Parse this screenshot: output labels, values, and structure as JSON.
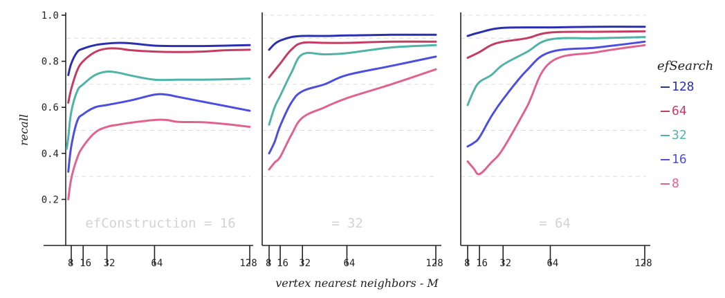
{
  "chart_data": {
    "type": "line",
    "ylabel": "recall",
    "xlabel": "vertex nearest neighbors - M",
    "ylim": [
      0.0,
      1.0
    ],
    "yticks": [
      "0.2",
      "0.4",
      "0.6",
      "0.8",
      "1.0"
    ],
    "xlim": [
      0,
      130
    ],
    "xticks": [
      "8",
      "16",
      "32",
      "64",
      "128"
    ],
    "grid": true,
    "legend": {
      "title": "efSearch",
      "position": "right",
      "entries": [
        "128",
        "64",
        "32",
        "16",
        "8"
      ]
    },
    "colors": {
      "128": "#2a2fb0",
      "64": "#c43b63",
      "32": "#4fb3a8",
      "16": "#4c4ee0",
      "8": "#e0628e"
    },
    "panels": [
      {
        "label": "efConstruction = 16",
        "series": [
          {
            "name": "128",
            "points": [
              [
                6,
                0.74
              ],
              [
                8,
                0.79
              ],
              [
                12,
                0.84
              ],
              [
                16,
                0.855
              ],
              [
                24,
                0.87
              ],
              [
                32,
                0.877
              ],
              [
                40,
                0.88
              ],
              [
                48,
                0.878
              ],
              [
                64,
                0.868
              ],
              [
                80,
                0.866
              ],
              [
                96,
                0.866
              ],
              [
                112,
                0.868
              ],
              [
                128,
                0.87
              ]
            ]
          },
          {
            "name": "64",
            "points": [
              [
                6,
                0.62
              ],
              [
                8,
                0.68
              ],
              [
                12,
                0.76
              ],
              [
                16,
                0.8
              ],
              [
                24,
                0.84
              ],
              [
                32,
                0.855
              ],
              [
                40,
                0.855
              ],
              [
                48,
                0.848
              ],
              [
                64,
                0.842
              ],
              [
                80,
                0.84
              ],
              [
                96,
                0.842
              ],
              [
                112,
                0.848
              ],
              [
                128,
                0.85
              ]
            ]
          },
          {
            "name": "32",
            "points": [
              [
                5,
                0.42
              ],
              [
                6,
                0.47
              ],
              [
                8,
                0.58
              ],
              [
                12,
                0.67
              ],
              [
                16,
                0.7
              ],
              [
                24,
                0.74
              ],
              [
                32,
                0.755
              ],
              [
                40,
                0.75
              ],
              [
                48,
                0.738
              ],
              [
                64,
                0.72
              ],
              [
                80,
                0.72
              ],
              [
                96,
                0.72
              ],
              [
                112,
                0.722
              ],
              [
                128,
                0.725
              ]
            ]
          },
          {
            "name": "16",
            "points": [
              [
                6,
                0.32
              ],
              [
                8,
                0.43
              ],
              [
                12,
                0.54
              ],
              [
                16,
                0.57
              ],
              [
                24,
                0.6
              ],
              [
                32,
                0.61
              ],
              [
                48,
                0.63
              ],
              [
                64,
                0.655
              ],
              [
                72,
                0.655
              ],
              [
                80,
                0.645
              ],
              [
                96,
                0.625
              ],
              [
                112,
                0.605
              ],
              [
                128,
                0.585
              ]
            ]
          },
          {
            "name": "8",
            "points": [
              [
                6,
                0.2
              ],
              [
                8,
                0.29
              ],
              [
                12,
                0.38
              ],
              [
                16,
                0.43
              ],
              [
                24,
                0.49
              ],
              [
                32,
                0.515
              ],
              [
                40,
                0.525
              ],
              [
                48,
                0.533
              ],
              [
                64,
                0.545
              ],
              [
                72,
                0.545
              ],
              [
                80,
                0.537
              ],
              [
                96,
                0.535
              ],
              [
                112,
                0.527
              ],
              [
                128,
                0.515
              ]
            ]
          }
        ]
      },
      {
        "label": "= 32",
        "series": [
          {
            "name": "128",
            "points": [
              [
                8,
                0.85
              ],
              [
                12,
                0.875
              ],
              [
                16,
                0.89
              ],
              [
                24,
                0.905
              ],
              [
                32,
                0.91
              ],
              [
                48,
                0.91
              ],
              [
                64,
                0.912
              ],
              [
                96,
                0.915
              ],
              [
                128,
                0.915
              ]
            ]
          },
          {
            "name": "64",
            "points": [
              [
                8,
                0.73
              ],
              [
                12,
                0.76
              ],
              [
                16,
                0.79
              ],
              [
                24,
                0.85
              ],
              [
                32,
                0.88
              ],
              [
                48,
                0.88
              ],
              [
                64,
                0.88
              ],
              [
                96,
                0.885
              ],
              [
                128,
                0.885
              ]
            ]
          },
          {
            "name": "32",
            "points": [
              [
                8,
                0.525
              ],
              [
                12,
                0.6
              ],
              [
                16,
                0.65
              ],
              [
                24,
                0.75
              ],
              [
                32,
                0.83
              ],
              [
                48,
                0.83
              ],
              [
                64,
                0.835
              ],
              [
                96,
                0.86
              ],
              [
                128,
                0.87
              ]
            ]
          },
          {
            "name": "16",
            "points": [
              [
                8,
                0.4
              ],
              [
                12,
                0.45
              ],
              [
                16,
                0.52
              ],
              [
                24,
                0.62
              ],
              [
                32,
                0.67
              ],
              [
                48,
                0.7
              ],
              [
                64,
                0.74
              ],
              [
                96,
                0.78
              ],
              [
                128,
                0.82
              ]
            ]
          },
          {
            "name": "8",
            "points": [
              [
                8,
                0.33
              ],
              [
                12,
                0.36
              ],
              [
                16,
                0.385
              ],
              [
                24,
                0.48
              ],
              [
                32,
                0.555
              ],
              [
                48,
                0.6
              ],
              [
                64,
                0.64
              ],
              [
                96,
                0.7
              ],
              [
                128,
                0.765
              ]
            ]
          }
        ]
      },
      {
        "label": "= 64",
        "series": [
          {
            "name": "128",
            "points": [
              [
                8,
                0.91
              ],
              [
                16,
                0.925
              ],
              [
                32,
                0.945
              ],
              [
                64,
                0.947
              ],
              [
                96,
                0.95
              ],
              [
                128,
                0.95
              ]
            ]
          },
          {
            "name": "64",
            "points": [
              [
                8,
                0.815
              ],
              [
                16,
                0.84
              ],
              [
                24,
                0.87
              ],
              [
                32,
                0.885
              ],
              [
                48,
                0.9
              ],
              [
                64,
                0.925
              ],
              [
                96,
                0.928
              ],
              [
                128,
                0.93
              ]
            ]
          },
          {
            "name": "32",
            "points": [
              [
                8,
                0.61
              ],
              [
                12,
                0.67
              ],
              [
                16,
                0.71
              ],
              [
                24,
                0.74
              ],
              [
                32,
                0.785
              ],
              [
                48,
                0.84
              ],
              [
                64,
                0.895
              ],
              [
                96,
                0.9
              ],
              [
                128,
                0.905
              ]
            ]
          },
          {
            "name": "16",
            "points": [
              [
                8,
                0.43
              ],
              [
                12,
                0.445
              ],
              [
                16,
                0.47
              ],
              [
                24,
                0.56
              ],
              [
                32,
                0.635
              ],
              [
                48,
                0.76
              ],
              [
                64,
                0.84
              ],
              [
                96,
                0.86
              ],
              [
                128,
                0.885
              ]
            ]
          },
          {
            "name": "8",
            "points": [
              [
                8,
                0.365
              ],
              [
                12,
                0.335
              ],
              [
                16,
                0.31
              ],
              [
                24,
                0.36
              ],
              [
                32,
                0.42
              ],
              [
                48,
                0.6
              ],
              [
                64,
                0.795
              ],
              [
                96,
                0.84
              ],
              [
                128,
                0.87
              ]
            ]
          }
        ]
      }
    ]
  }
}
